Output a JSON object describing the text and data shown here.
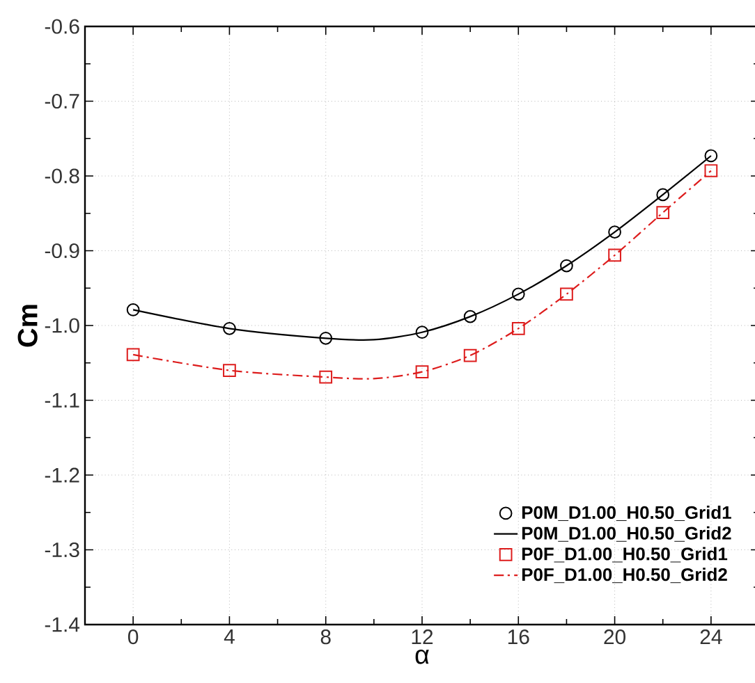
{
  "chart_data": {
    "type": "line",
    "xlabel": "α",
    "ylabel": "Cm",
    "xlim": [
      -2,
      26
    ],
    "ylim": [
      -1.4,
      -0.6
    ],
    "xticks": [
      0,
      4,
      8,
      12,
      16,
      20,
      24
    ],
    "yticks": [
      -1.4,
      -1.3,
      -1.2,
      -1.1,
      {
        "value": -1,
        "label": "-1.0"
      },
      -0.9,
      -0.8,
      -0.7,
      -0.6
    ],
    "grid": true,
    "legend": "bottom right",
    "series": [
      {
        "name": "P0M_D1.00_H0.50_Grid1",
        "type": "scatter",
        "marker": "circle",
        "color": "#000000",
        "x": [
          0,
          4,
          8,
          12,
          14,
          16,
          18,
          20,
          22,
          24
        ],
        "values": [
          -0.979,
          -1.004,
          -1.017,
          -1.009,
          -0.988,
          -0.958,
          -0.92,
          -0.875,
          -0.825,
          -0.773
        ]
      },
      {
        "name": "P0M_D1.00_H0.50_Grid2",
        "line_style": "solid",
        "color": "#000000",
        "x": [
          0,
          4,
          8,
          10,
          12,
          14,
          16,
          18,
          20,
          22,
          24
        ],
        "values": [
          -0.979,
          -1.004,
          -1.017,
          -1.019,
          -1.009,
          -0.988,
          -0.958,
          -0.92,
          -0.875,
          -0.825,
          -0.773
        ]
      },
      {
        "name": "P0F_D1.00_H0.50_Grid1",
        "type": "scatter",
        "marker": "square",
        "color": "#dd1c1c",
        "x": [
          0,
          4,
          8,
          12,
          14,
          16,
          18,
          20,
          22,
          24
        ],
        "values": [
          -1.039,
          -1.06,
          -1.069,
          -1.062,
          -1.04,
          -1.004,
          -0.958,
          -0.906,
          -0.849,
          -0.793
        ]
      },
      {
        "name": "P0F_D1.00_H0.50_Grid2",
        "line_style": "dashdot",
        "color": "#dd1c1c",
        "x": [
          0,
          4,
          8,
          10,
          12,
          14,
          16,
          18,
          20,
          22,
          24
        ],
        "values": [
          -1.039,
          -1.06,
          -1.069,
          -1.071,
          -1.062,
          -1.04,
          -1.004,
          -0.958,
          -0.906,
          -0.849,
          -0.793
        ]
      }
    ]
  }
}
